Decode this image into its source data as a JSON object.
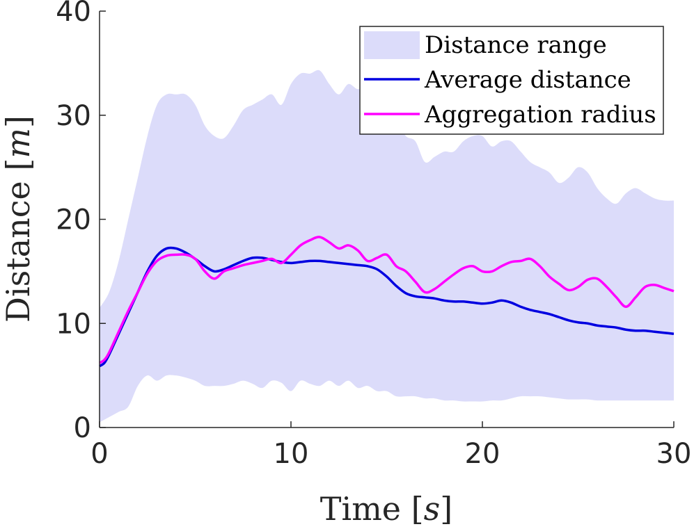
{
  "chart_data": {
    "type": "line",
    "title": "",
    "xlabel_text": "Time",
    "xlabel_unit": "s",
    "ylabel_text": "Distance",
    "ylabel_unit": "m",
    "xlim": [
      0,
      30
    ],
    "ylim": [
      0,
      40
    ],
    "xticks": [
      0,
      10,
      20,
      30
    ],
    "yticks": [
      0,
      10,
      20,
      30,
      40
    ],
    "grid": false,
    "legend_position": "top-right",
    "colors": {
      "range": "#dcdcfa",
      "average": "#0000e0",
      "aggregation": "#ff00ff",
      "axis": "#262626"
    },
    "legend": [
      "Distance range",
      "Average distance",
      "Aggregation radius"
    ],
    "range": {
      "x": [
        0,
        0.5,
        1,
        1.5,
        2,
        2.5,
        3,
        3.5,
        4,
        4.5,
        5,
        5.5,
        6,
        6.5,
        7,
        7.5,
        8,
        8.5,
        9,
        9.5,
        10,
        10.5,
        11,
        11.5,
        12,
        12.5,
        13,
        13.5,
        14,
        14.5,
        15,
        15.5,
        16,
        16.5,
        17,
        17.5,
        18,
        18.5,
        19,
        19.5,
        20,
        20.5,
        21,
        21.5,
        22,
        22.5,
        23,
        23.5,
        24,
        24.5,
        25,
        25.5,
        26,
        26.5,
        27,
        27.5,
        28,
        28.5,
        29,
        29.5,
        30
      ],
      "upper": [
        11.5,
        13,
        16,
        20,
        24,
        28,
        31,
        32,
        32,
        32,
        31,
        29,
        28,
        27.8,
        29,
        30.5,
        31,
        31.5,
        32,
        31,
        33,
        34,
        34,
        34.3,
        33,
        32,
        33,
        32.5,
        33,
        31,
        30,
        29.5,
        28,
        27.5,
        25.5,
        26,
        26.5,
        26.5,
        27.5,
        28,
        28,
        27,
        27.5,
        27.5,
        26.5,
        25.5,
        25,
        24.5,
        23.5,
        24,
        25,
        24.5,
        23,
        22,
        21.5,
        22.5,
        23,
        22.5,
        22,
        21.8,
        21.8
      ],
      "lower": [
        0.5,
        1,
        1.5,
        2,
        4,
        5,
        4.5,
        5,
        5,
        4.8,
        4.5,
        4,
        4,
        4,
        4.2,
        4.5,
        4.2,
        3.8,
        4.5,
        4.3,
        3.5,
        4.5,
        4.2,
        4,
        4.5,
        4,
        4.5,
        3.8,
        4,
        3.5,
        3.5,
        3,
        3,
        3,
        2.8,
        2.8,
        2.6,
        2.6,
        2.5,
        2.5,
        2.5,
        2.6,
        2.6,
        2.8,
        3,
        3,
        3,
        2.9,
        2.8,
        2.7,
        2.7,
        2.7,
        2.6,
        2.6,
        2.6,
        2.6,
        2.6,
        2.6,
        2.6,
        2.6,
        2.6
      ]
    },
    "series": [
      {
        "name": "Average distance",
        "x": [
          0,
          0.25,
          0.5,
          1,
          1.5,
          2,
          2.5,
          3,
          3.5,
          4,
          4.5,
          5,
          5.5,
          6,
          6.5,
          7,
          7.5,
          8,
          8.5,
          9,
          9.5,
          10,
          10.5,
          11,
          11.5,
          12,
          12.5,
          13,
          13.5,
          14,
          14.5,
          15,
          15.5,
          16,
          16.5,
          17,
          17.5,
          18,
          18.5,
          19,
          19.5,
          20,
          20.5,
          21,
          21.5,
          22,
          22.5,
          23,
          23.5,
          24,
          24.5,
          25,
          25.5,
          26,
          26.5,
          27,
          27.5,
          28,
          28.5,
          29,
          29.5,
          30
        ],
        "values": [
          5.9,
          6.2,
          7,
          9,
          11,
          13,
          15,
          16.5,
          17.2,
          17.2,
          16.8,
          16.2,
          15.5,
          15,
          15.2,
          15.6,
          16,
          16.3,
          16.3,
          16.1,
          15.9,
          15.8,
          15.9,
          16,
          16,
          15.9,
          15.8,
          15.7,
          15.6,
          15.5,
          15.2,
          14.5,
          13.6,
          12.9,
          12.6,
          12.5,
          12.4,
          12.2,
          12.1,
          12.1,
          12,
          11.9,
          12,
          12.2,
          12,
          11.6,
          11.3,
          11.1,
          10.9,
          10.6,
          10.3,
          10.1,
          10,
          9.8,
          9.7,
          9.6,
          9.4,
          9.3,
          9.3,
          9.2,
          9.1,
          9
        ]
      },
      {
        "name": "Aggregation radius",
        "x": [
          0,
          0.25,
          0.5,
          1,
          1.5,
          2,
          2.5,
          3,
          3.5,
          4,
          4.5,
          5,
          5.5,
          6,
          6.5,
          7,
          7.5,
          8,
          8.5,
          9,
          9.5,
          10,
          10.5,
          11,
          11.5,
          12,
          12.5,
          13,
          13.5,
          14,
          14.5,
          15,
          15.5,
          16,
          16.5,
          17,
          17.5,
          18,
          18.5,
          19,
          19.5,
          20,
          20.5,
          21,
          21.5,
          22,
          22.5,
          23,
          23.5,
          24,
          24.5,
          25,
          25.5,
          26,
          26.5,
          27,
          27.5,
          28,
          28.5,
          29,
          29.5,
          30
        ],
        "values": [
          6.2,
          6.5,
          7.2,
          9.2,
          11.2,
          13,
          14.8,
          16,
          16.5,
          16.6,
          16.6,
          16.2,
          15,
          14.3,
          15,
          15.3,
          15.6,
          15.8,
          16,
          16.2,
          15.8,
          16.6,
          17.5,
          18,
          18.3,
          17.8,
          17.2,
          17.5,
          17,
          16,
          16.3,
          16.6,
          15.5,
          15,
          14,
          13,
          13.3,
          14,
          14.7,
          15.3,
          15.5,
          15,
          15,
          15.5,
          15.9,
          16,
          16.2,
          15.5,
          14.5,
          13.8,
          13.2,
          13.5,
          14.2,
          14.3,
          13.5,
          12.5,
          11.6,
          12.5,
          13.5,
          13.7,
          13.4,
          13.1
        ]
      }
    ]
  }
}
